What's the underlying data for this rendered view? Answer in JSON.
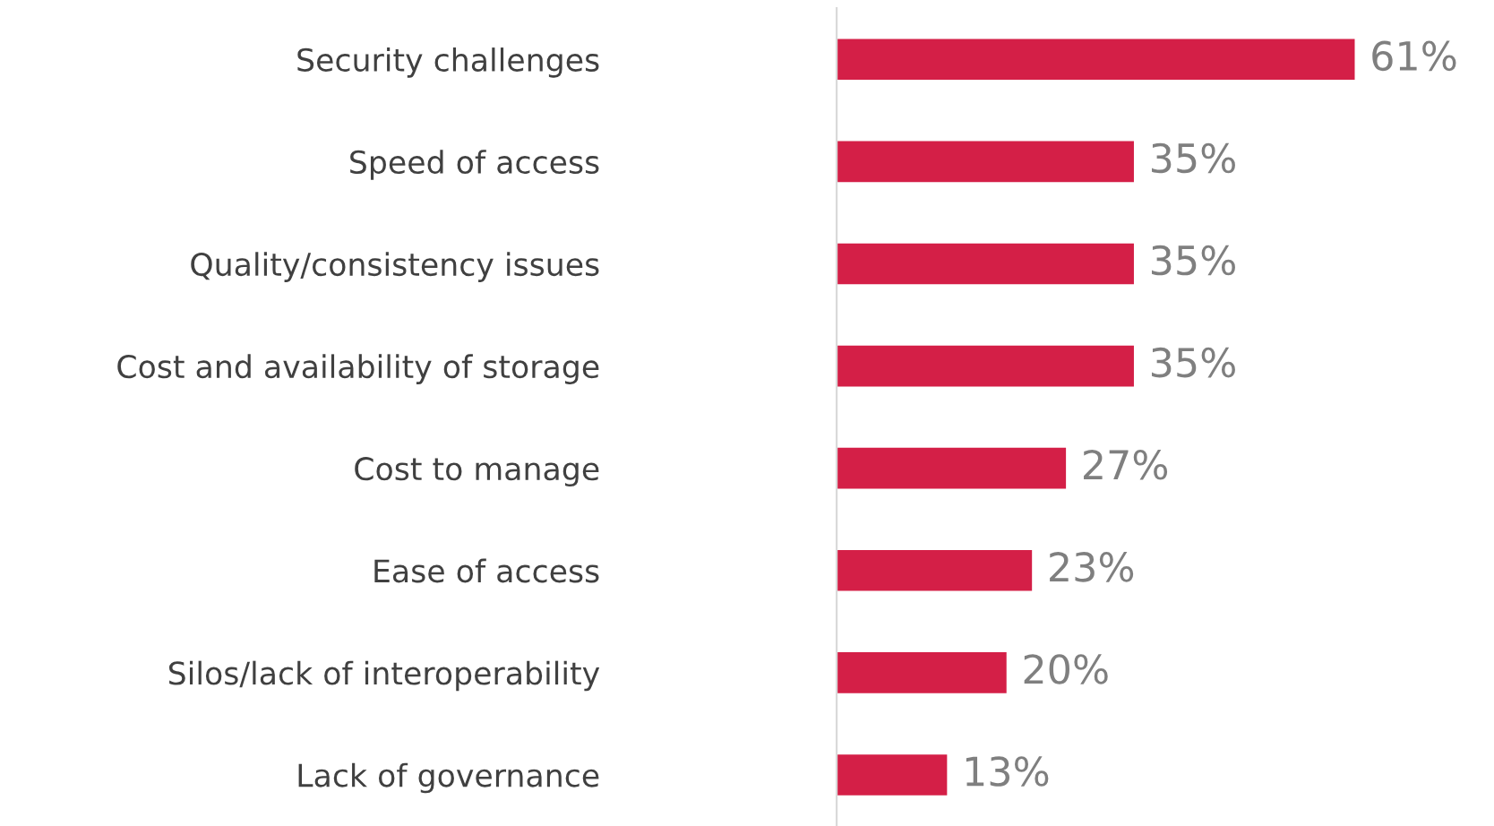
{
  "chart_data": {
    "type": "bar",
    "orientation": "horizontal",
    "categories": [
      "Security challenges",
      "Speed of access",
      "Quality/consistency issues",
      "Cost and availability of storage",
      "Cost to manage",
      "Ease of access",
      "Silos/lack of interoperability",
      "Lack of governance"
    ],
    "values": [
      61,
      35,
      35,
      35,
      27,
      23,
      20,
      13
    ],
    "value_labels": [
      "61%",
      "35%",
      "35%",
      "35%",
      "27%",
      "23%",
      "20%",
      "13%"
    ],
    "color": "#d41f47",
    "grid": false,
    "legend": false
  }
}
